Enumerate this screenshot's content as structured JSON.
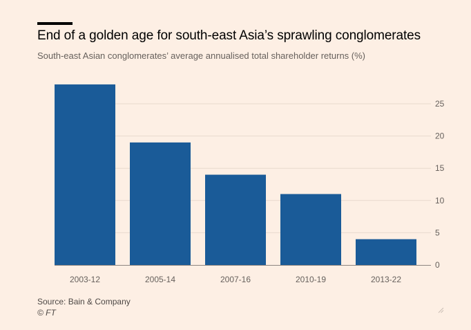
{
  "header": {
    "title": "End of a golden age for south-east Asia’s sprawling conglomerates",
    "subtitle": "South-east Asian conglomerates’ average annualised total shareholder returns (%)"
  },
  "footer": {
    "source": "Source: Bain & Company",
    "credit": "© FT"
  },
  "colors": {
    "bar": "#1a5b98",
    "background": "#fdefe4",
    "grid": "#e8d9cd",
    "axis": "#66605c"
  },
  "icons": {
    "corner": "resize-handle-icon"
  },
  "chart_data": {
    "type": "bar",
    "categories": [
      "2003-12",
      "2005-14",
      "2007-16",
      "2010-19",
      "2013-22"
    ],
    "values": [
      28,
      19,
      14,
      11,
      4
    ],
    "title": "End of a golden age for south-east Asia’s sprawling conglomerates",
    "subtitle": "South-east Asian conglomerates’ average annualised total shareholder returns (%)",
    "xlabel": "",
    "ylabel": "",
    "ylim": [
      0,
      25
    ],
    "yticks": [
      0,
      5,
      10,
      15,
      20,
      25
    ],
    "y_axis_side": "right",
    "grid": true,
    "legend": "none"
  }
}
